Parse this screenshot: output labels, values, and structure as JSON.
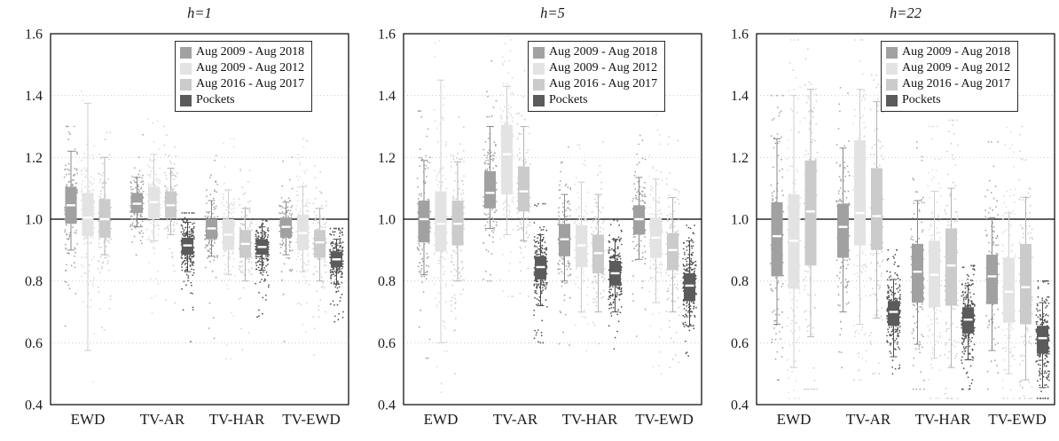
{
  "figure": {
    "background": "#ffffff",
    "reference_line_color": "#000000",
    "gridline_color": "#c9c9c9",
    "frame_color": "#000000",
    "median_color": "#ffffff"
  },
  "chart_data": [
    {
      "type": "box",
      "title": "h=1",
      "categories": [
        "EWD",
        "TV-AR",
        "TV-HAR",
        "TV-EWD"
      ],
      "ylim": [
        0.4,
        1.6
      ],
      "y_ticks": [
        0.4,
        0.6,
        0.8,
        1.0,
        1.2,
        1.4,
        1.6
      ],
      "reference_line": 1.0,
      "legend_position": "top-right",
      "grid": true,
      "series": [
        {
          "name": "Aug 2009 - Aug 2018",
          "color": "#a1a1a1",
          "line_color": "#8a8a8a",
          "dot_color": "#a6a6a6",
          "boxes": [
            {
              "min": 0.5,
              "max": 1.3,
              "lo": 0.9,
              "q1": 0.985,
              "med": 1.045,
              "q3": 1.105,
              "hi": 1.22
            },
            {
              "min": 0.72,
              "max": 1.3,
              "lo": 0.975,
              "q1": 1.02,
              "med": 1.05,
              "q3": 1.085,
              "hi": 1.135
            },
            {
              "min": 0.6,
              "max": 1.22,
              "lo": 0.88,
              "q1": 0.935,
              "med": 0.97,
              "q3": 1.0,
              "hi": 1.06
            },
            {
              "min": 0.6,
              "max": 1.2,
              "lo": 0.885,
              "q1": 0.94,
              "med": 0.975,
              "q3": 1.005,
              "hi": 1.055
            }
          ]
        },
        {
          "name": "Aug 2009 - Aug 2012",
          "color": "#e3e3e3",
          "line_color": "#cfcfcf",
          "dot_color": "#dedede",
          "boxes": [
            {
              "min": 0.44,
              "max": 1.6,
              "lo": 0.575,
              "q1": 0.945,
              "med": 1.005,
              "q3": 1.085,
              "hi": 1.375
            },
            {
              "min": 0.68,
              "max": 1.35,
              "lo": 0.93,
              "q1": 1.0,
              "med": 1.055,
              "q3": 1.105,
              "hi": 1.21
            },
            {
              "min": 0.54,
              "max": 1.26,
              "lo": 0.82,
              "q1": 0.9,
              "med": 0.95,
              "q3": 1.0,
              "hi": 1.095
            },
            {
              "min": 0.54,
              "max": 1.26,
              "lo": 0.83,
              "q1": 0.9,
              "med": 0.955,
              "q3": 1.015,
              "hi": 1.105
            }
          ]
        },
        {
          "name": "Aug 2016 - Aug 2017",
          "color": "#cbcbcb",
          "line_color": "#b5b5b5",
          "dot_color": "#cfcfcf",
          "boxes": [
            {
              "min": 0.55,
              "max": 1.28,
              "lo": 0.885,
              "q1": 0.94,
              "med": 1.0,
              "q3": 1.065,
              "hi": 1.2
            },
            {
              "min": 0.72,
              "max": 1.3,
              "lo": 0.95,
              "q1": 1.005,
              "med": 1.045,
              "q3": 1.09,
              "hi": 1.165
            },
            {
              "min": 0.56,
              "max": 1.2,
              "lo": 0.8,
              "q1": 0.875,
              "med": 0.92,
              "q3": 0.965,
              "hi": 1.035
            },
            {
              "min": 0.55,
              "max": 1.18,
              "lo": 0.8,
              "q1": 0.875,
              "med": 0.925,
              "q3": 0.965,
              "hi": 1.035
            }
          ]
        },
        {
          "name": "Pockets",
          "color": "#5b5b5b",
          "line_color": "#4c4c4c",
          "dot_color": "#555555",
          "boxes": [
            null,
            {
              "min": 0.6,
              "max": 1.02,
              "lo": 0.83,
              "q1": 0.885,
              "med": 0.915,
              "q3": 0.94,
              "hi": 0.99
            },
            {
              "min": 0.68,
              "max": 1.0,
              "lo": 0.835,
              "q1": 0.885,
              "med": 0.91,
              "q3": 0.935,
              "hi": 0.975
            },
            {
              "min": 0.63,
              "max": 0.97,
              "lo": 0.79,
              "q1": 0.845,
              "med": 0.87,
              "q3": 0.895,
              "hi": 0.935
            }
          ]
        }
      ]
    },
    {
      "type": "box",
      "title": "h=5",
      "categories": [
        "EWD",
        "TV-AR",
        "TV-HAR",
        "TV-EWD"
      ],
      "ylim": [
        0.4,
        1.6
      ],
      "y_ticks": [
        0.4,
        0.6,
        0.8,
        1.0,
        1.2,
        1.4,
        1.6
      ],
      "reference_line": 1.0,
      "legend_position": "top-right",
      "grid": true,
      "series": [
        {
          "name": "Aug 2009 - Aug 2018",
          "color": "#a1a1a1",
          "line_color": "#8a8a8a",
          "dot_color": "#a6a6a6",
          "boxes": [
            {
              "min": 0.55,
              "max": 1.35,
              "lo": 0.82,
              "q1": 0.925,
              "med": 1.0,
              "q3": 1.06,
              "hi": 1.19
            },
            {
              "min": 0.8,
              "max": 1.55,
              "lo": 0.97,
              "q1": 1.035,
              "med": 1.085,
              "q3": 1.155,
              "hi": 1.3
            },
            {
              "min": 0.58,
              "max": 1.25,
              "lo": 0.8,
              "q1": 0.88,
              "med": 0.935,
              "q3": 0.985,
              "hi": 1.08
            },
            {
              "min": 0.62,
              "max": 1.3,
              "lo": 0.87,
              "q1": 0.95,
              "med": 1.0,
              "q3": 1.045,
              "hi": 1.135
            }
          ]
        },
        {
          "name": "Aug 2009 - Aug 2012",
          "color": "#e3e3e3",
          "line_color": "#cfcfcf",
          "dot_color": "#dedede",
          "boxes": [
            {
              "min": 0.44,
              "max": 1.6,
              "lo": 0.6,
              "q1": 0.895,
              "med": 0.985,
              "q3": 1.09,
              "hi": 1.45
            },
            {
              "min": 0.75,
              "max": 1.6,
              "lo": 0.95,
              "q1": 1.08,
              "med": 1.21,
              "q3": 1.305,
              "hi": 1.43
            },
            {
              "min": 0.5,
              "max": 1.3,
              "lo": 0.7,
              "q1": 0.845,
              "med": 0.915,
              "q3": 0.98,
              "hi": 1.12
            },
            {
              "min": 0.5,
              "max": 1.35,
              "lo": 0.73,
              "q1": 0.875,
              "med": 0.94,
              "q3": 1.005,
              "hi": 1.13
            }
          ]
        },
        {
          "name": "Aug 2016 - Aug 2017",
          "color": "#cbcbcb",
          "line_color": "#b5b5b5",
          "dot_color": "#cfcfcf",
          "boxes": [
            {
              "min": 0.5,
              "max": 1.33,
              "lo": 0.8,
              "q1": 0.915,
              "med": 0.985,
              "q3": 1.06,
              "hi": 1.185
            },
            {
              "min": 0.75,
              "max": 1.55,
              "lo": 0.93,
              "q1": 1.025,
              "med": 1.09,
              "q3": 1.17,
              "hi": 1.3
            },
            {
              "min": 0.52,
              "max": 1.25,
              "lo": 0.7,
              "q1": 0.825,
              "med": 0.89,
              "q3": 0.95,
              "hi": 1.08
            },
            {
              "min": 0.52,
              "max": 1.28,
              "lo": 0.7,
              "q1": 0.835,
              "med": 0.9,
              "q3": 0.955,
              "hi": 1.07
            }
          ]
        },
        {
          "name": "Pockets",
          "color": "#5b5b5b",
          "line_color": "#4c4c4c",
          "dot_color": "#555555",
          "boxes": [
            null,
            {
              "min": 0.6,
              "max": 1.05,
              "lo": 0.72,
              "q1": 0.805,
              "med": 0.845,
              "q3": 0.88,
              "hi": 0.95
            },
            {
              "min": 0.58,
              "max": 1.0,
              "lo": 0.7,
              "q1": 0.785,
              "med": 0.825,
              "q3": 0.865,
              "hi": 0.935
            },
            {
              "min": 0.55,
              "max": 0.98,
              "lo": 0.655,
              "q1": 0.735,
              "med": 0.785,
              "q3": 0.825,
              "hi": 0.93
            }
          ]
        }
      ]
    },
    {
      "type": "box",
      "title": "h=22",
      "categories": [
        "EWD",
        "TV-AR",
        "TV-HAR",
        "TV-EWD"
      ],
      "ylim": [
        0.4,
        1.6
      ],
      "y_ticks": [
        0.4,
        0.6,
        0.8,
        1.0,
        1.2,
        1.4,
        1.6
      ],
      "reference_line": 1.0,
      "legend_position": "top-right",
      "grid": true,
      "series": [
        {
          "name": "Aug 2009 - Aug 2018",
          "color": "#a1a1a1",
          "line_color": "#8a8a8a",
          "dot_color": "#a6a6a6",
          "boxes": [
            {
              "min": 0.48,
              "max": 1.4,
              "lo": 0.66,
              "q1": 0.815,
              "med": 0.945,
              "q3": 1.055,
              "hi": 1.26
            },
            {
              "min": 0.52,
              "max": 1.45,
              "lo": 0.7,
              "q1": 0.875,
              "med": 0.975,
              "q3": 1.05,
              "hi": 1.23
            },
            {
              "min": 0.45,
              "max": 1.25,
              "lo": 0.595,
              "q1": 0.73,
              "med": 0.83,
              "q3": 0.92,
              "hi": 1.06
            },
            {
              "min": 0.45,
              "max": 1.25,
              "lo": 0.575,
              "q1": 0.725,
              "med": 0.815,
              "q3": 0.885,
              "hi": 1.005
            }
          ]
        },
        {
          "name": "Aug 2009 - Aug 2012",
          "color": "#e3e3e3",
          "line_color": "#cfcfcf",
          "dot_color": "#dedede",
          "boxes": [
            {
              "min": 0.42,
              "max": 1.58,
              "lo": 0.52,
              "q1": 0.775,
              "med": 0.93,
              "q3": 1.08,
              "hi": 1.4
            },
            {
              "min": 0.48,
              "max": 1.58,
              "lo": 0.66,
              "q1": 0.915,
              "med": 1.02,
              "q3": 1.255,
              "hi": 1.42
            },
            {
              "min": 0.42,
              "max": 1.3,
              "lo": 0.55,
              "q1": 0.715,
              "med": 0.82,
              "q3": 0.93,
              "hi": 1.09
            },
            {
              "min": 0.42,
              "max": 1.3,
              "lo": 0.5,
              "q1": 0.665,
              "med": 0.765,
              "q3": 0.875,
              "hi": 1.02
            }
          ]
        },
        {
          "name": "Aug 2016 - Aug 2017",
          "color": "#cbcbcb",
          "line_color": "#b5b5b5",
          "dot_color": "#cfcfcf",
          "boxes": [
            {
              "min": 0.45,
              "max": 1.55,
              "lo": 0.62,
              "q1": 0.85,
              "med": 1.025,
              "q3": 1.19,
              "hi": 1.42
            },
            {
              "min": 0.5,
              "max": 1.55,
              "lo": 0.68,
              "q1": 0.9,
              "med": 1.01,
              "q3": 1.165,
              "hi": 1.38
            },
            {
              "min": 0.42,
              "max": 1.32,
              "lo": 0.52,
              "q1": 0.72,
              "med": 0.85,
              "q3": 0.97,
              "hi": 1.1
            },
            {
              "min": 0.42,
              "max": 1.3,
              "lo": 0.48,
              "q1": 0.66,
              "med": 0.78,
              "q3": 0.92,
              "hi": 1.07
            }
          ]
        },
        {
          "name": "Pockets",
          "color": "#5b5b5b",
          "line_color": "#4c4c4c",
          "dot_color": "#555555",
          "boxes": [
            null,
            {
              "min": 0.48,
              "max": 0.9,
              "lo": 0.555,
              "q1": 0.655,
              "med": 0.7,
              "q3": 0.735,
              "hi": 0.805
            },
            {
              "min": 0.45,
              "max": 0.85,
              "lo": 0.545,
              "q1": 0.63,
              "med": 0.675,
              "q3": 0.715,
              "hi": 0.785
            },
            {
              "min": 0.42,
              "max": 0.8,
              "lo": 0.455,
              "q1": 0.565,
              "med": 0.615,
              "q3": 0.655,
              "hi": 0.73
            }
          ]
        }
      ]
    }
  ]
}
